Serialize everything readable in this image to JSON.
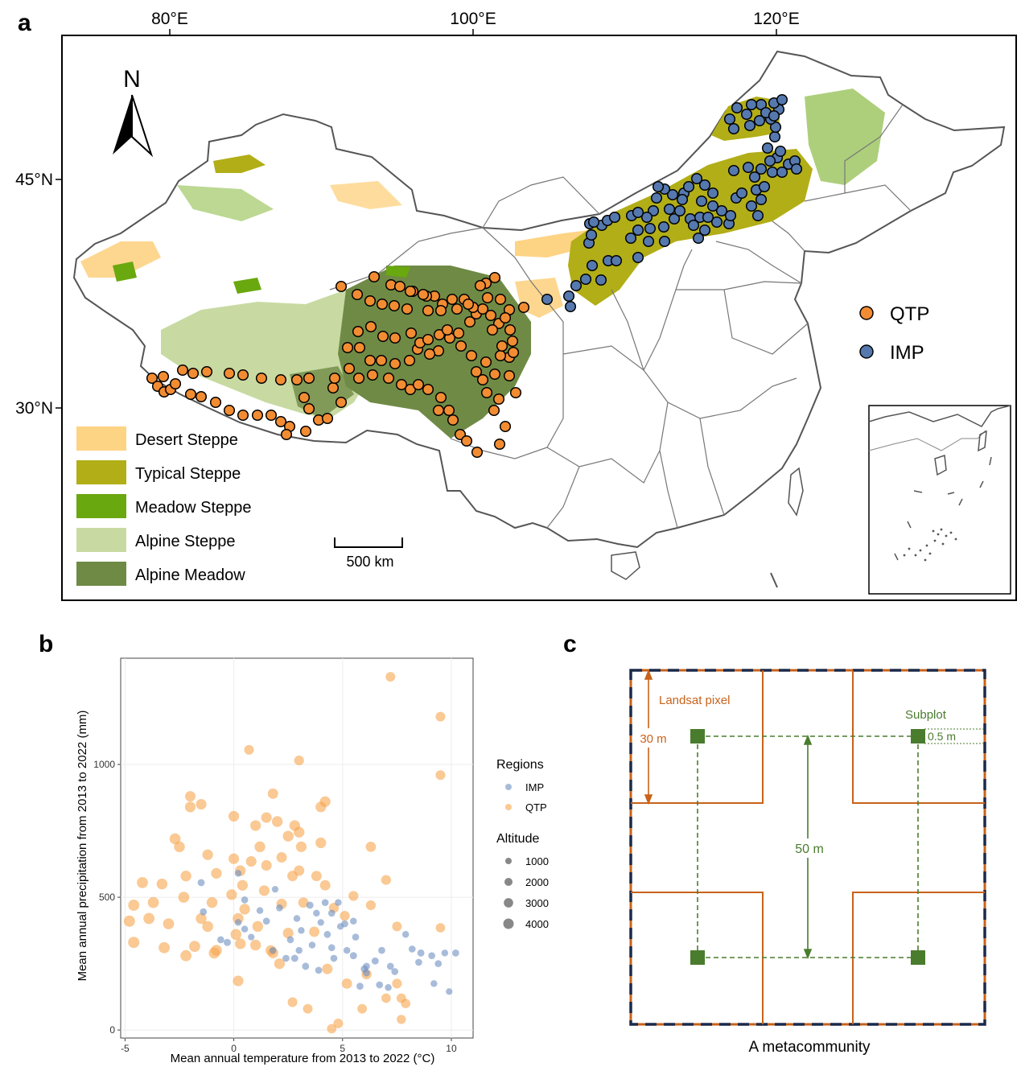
{
  "panel_labels": {
    "a": "a",
    "b": "b",
    "c": "c"
  },
  "map": {
    "lon_ticks": [
      "80°E",
      "100°E",
      "120°E"
    ],
    "lat_ticks": [
      "45°N",
      "30°N"
    ],
    "north_label": "N",
    "scale_label": "500 km",
    "legend_vegetation": [
      {
        "label": "Desert Steppe",
        "color": "#FDD384"
      },
      {
        "label": "Typical Steppe",
        "color": "#B1AE17"
      },
      {
        "label": "Meadow Steppe",
        "color": "#6AA80F"
      },
      {
        "label": "Alpine Steppe",
        "color": "#C8DAA2"
      },
      {
        "label": "Alpine Meadow",
        "color": "#6F8A45"
      }
    ],
    "legend_sites": [
      {
        "label": "QTP",
        "color": "#F28C32"
      },
      {
        "label": "IMP",
        "color": "#5579AE"
      }
    ]
  },
  "chart_data": {
    "type": "scatter",
    "title": "",
    "xlabel": "Mean annual temperature from 2013 to 2022 (°C)",
    "ylabel": "Mean annual precipitation from 2013 to 2022 (mm)",
    "xlim": [
      -5.2,
      11
    ],
    "ylim": [
      -30,
      1400
    ],
    "xticks": [
      -5,
      0,
      5,
      10
    ],
    "yticks": [
      0,
      500,
      1000
    ],
    "legend": {
      "regions_title": "Regions",
      "regions": [
        {
          "name": "IMP",
          "color": "#6E8FC2"
        },
        {
          "name": "QTP",
          "color": "#F7A54C"
        }
      ],
      "altitude_title": "Altitude",
      "altitude_values": [
        1000,
        2000,
        3000,
        4000
      ]
    },
    "series": [
      {
        "name": "QTP",
        "color": "#F7A54C",
        "points": [
          [
            7.2,
            1330,
            3200
          ],
          [
            9.5,
            1180,
            3300
          ],
          [
            9.5,
            960,
            3300
          ],
          [
            0.7,
            1055,
            3300
          ],
          [
            3,
            1015,
            3400
          ],
          [
            -2,
            840,
            4200
          ],
          [
            -1.5,
            850,
            4100
          ],
          [
            -2,
            880,
            4000
          ],
          [
            0,
            805,
            4200
          ],
          [
            1.5,
            800,
            4100
          ],
          [
            2.8,
            770,
            4200
          ],
          [
            3,
            745,
            4300
          ],
          [
            4,
            840,
            4100
          ],
          [
            4.2,
            860,
            4200
          ],
          [
            1.8,
            890,
            3900
          ],
          [
            -2.7,
            720,
            4500
          ],
          [
            -2.5,
            690,
            4400
          ],
          [
            -1.2,
            660,
            4200
          ],
          [
            0,
            645,
            4100
          ],
          [
            1.2,
            690,
            4300
          ],
          [
            1,
            770,
            4200
          ],
          [
            2,
            785,
            4300
          ],
          [
            2.5,
            730,
            4300
          ],
          [
            3.1,
            690,
            4100
          ],
          [
            4,
            705,
            4200
          ],
          [
            6.3,
            690,
            3800
          ],
          [
            -4.2,
            555,
            4600
          ],
          [
            -3.3,
            550,
            4400
          ],
          [
            -2.2,
            580,
            4300
          ],
          [
            -0.8,
            590,
            4200
          ],
          [
            0.3,
            600,
            4200
          ],
          [
            0.8,
            635,
            4100
          ],
          [
            1.5,
            620,
            4100
          ],
          [
            2.2,
            650,
            4000
          ],
          [
            3,
            600,
            4000
          ],
          [
            3.8,
            580,
            3900
          ],
          [
            4.2,
            545,
            3900
          ],
          [
            -4.6,
            470,
            4700
          ],
          [
            -3.7,
            480,
            4600
          ],
          [
            -2.3,
            500,
            4500
          ],
          [
            -1,
            480,
            4400
          ],
          [
            -0.1,
            510,
            4200
          ],
          [
            0.4,
            545,
            4200
          ],
          [
            1.4,
            525,
            4100
          ],
          [
            2.2,
            475,
            4000
          ],
          [
            3.2,
            480,
            3900
          ],
          [
            -4.8,
            410,
            4800
          ],
          [
            -3.9,
            420,
            4700
          ],
          [
            -3,
            400,
            4600
          ],
          [
            -1.2,
            390,
            4500
          ],
          [
            0.2,
            420,
            4400
          ],
          [
            1.1,
            390,
            4300
          ],
          [
            2.5,
            365,
            4100
          ],
          [
            3.7,
            370,
            3900
          ],
          [
            5.1,
            430,
            3500
          ],
          [
            4.6,
            460,
            3600
          ],
          [
            -4.6,
            330,
            4800
          ],
          [
            -3.2,
            310,
            4700
          ],
          [
            -1.8,
            315,
            4600
          ],
          [
            -0.8,
            300,
            4500
          ],
          [
            0.3,
            325,
            4300
          ],
          [
            1,
            320,
            4300
          ],
          [
            1.8,
            290,
            4100
          ],
          [
            -2.2,
            280,
            4700
          ],
          [
            -0.9,
            290,
            4600
          ],
          [
            0.1,
            360,
            4400
          ],
          [
            0.2,
            185,
            4100
          ],
          [
            2.1,
            250,
            4200
          ],
          [
            4.3,
            230,
            4000
          ],
          [
            5.2,
            175,
            3800
          ],
          [
            6.1,
            210,
            3600
          ],
          [
            7.5,
            175,
            3300
          ],
          [
            7.7,
            120,
            3100
          ],
          [
            7.9,
            100,
            3000
          ],
          [
            7,
            120,
            3000
          ],
          [
            2.7,
            105,
            3300
          ],
          [
            3.4,
            80,
            3200
          ],
          [
            4.8,
            25,
            3200
          ],
          [
            4.5,
            5,
            3000
          ],
          [
            5.9,
            80,
            3100
          ],
          [
            7.7,
            40,
            2800
          ],
          [
            6.3,
            470,
            3400
          ],
          [
            7.5,
            390,
            3200
          ],
          [
            7,
            565,
            3400
          ],
          [
            9.5,
            385,
            3000
          ],
          [
            5.5,
            505,
            3500
          ],
          [
            1.7,
            300,
            4000
          ],
          [
            -1.5,
            420,
            4300
          ],
          [
            0.5,
            455,
            4200
          ],
          [
            2.7,
            580,
            4000
          ]
        ]
      },
      {
        "name": "IMP",
        "color": "#6E8FC2",
        "points": [
          [
            -1.5,
            555,
            1400
          ],
          [
            -1.4,
            445,
            1300
          ],
          [
            0.2,
            590,
            1200
          ],
          [
            0.5,
            490,
            1300
          ],
          [
            1.2,
            450,
            1200
          ],
          [
            1.9,
            530,
            1100
          ],
          [
            2.1,
            460,
            1300
          ],
          [
            2.9,
            420,
            1200
          ],
          [
            3.5,
            470,
            1400
          ],
          [
            4.2,
            480,
            1300
          ],
          [
            3.8,
            440,
            1200
          ],
          [
            4.5,
            440,
            1300
          ],
          [
            4.8,
            480,
            1200
          ],
          [
            5.1,
            400,
            1300
          ],
          [
            4.3,
            360,
            1300
          ],
          [
            3.1,
            375,
            1200
          ],
          [
            2.6,
            340,
            1300
          ],
          [
            1.8,
            300,
            1200
          ],
          [
            1.5,
            410,
            1300
          ],
          [
            0.8,
            350,
            1100
          ],
          [
            0.5,
            380,
            1200
          ],
          [
            -0.3,
            330,
            1400
          ],
          [
            -0.6,
            340,
            1300
          ],
          [
            0.2,
            405,
            1200
          ],
          [
            2.8,
            270,
            1400
          ],
          [
            3.3,
            240,
            1400
          ],
          [
            4.6,
            270,
            1300
          ],
          [
            5.5,
            280,
            1400
          ],
          [
            6.1,
            240,
            1300
          ],
          [
            6.5,
            260,
            1400
          ],
          [
            7.2,
            240,
            1300
          ],
          [
            7.4,
            220,
            1300
          ],
          [
            7.9,
            360,
            1200
          ],
          [
            8.2,
            305,
            1300
          ],
          [
            8.6,
            290,
            1400
          ],
          [
            9.1,
            280,
            1300
          ],
          [
            9.4,
            250,
            1300
          ],
          [
            9.7,
            290,
            1200
          ],
          [
            9.9,
            145,
            1100
          ],
          [
            10.2,
            290,
            1300
          ],
          [
            8.5,
            255,
            1300
          ],
          [
            9.2,
            175,
            1200
          ],
          [
            6,
            230,
            1400
          ],
          [
            6.1,
            215,
            1300
          ],
          [
            5.8,
            165,
            1300
          ],
          [
            6.7,
            170,
            1300
          ],
          [
            7.1,
            160,
            1200
          ],
          [
            3.9,
            225,
            1300
          ],
          [
            4.5,
            310,
            1300
          ],
          [
            3.6,
            320,
            1200
          ],
          [
            5.2,
            300,
            1200
          ],
          [
            5.6,
            350,
            1300
          ],
          [
            6.8,
            300,
            1300
          ],
          [
            3,
            300,
            1200
          ],
          [
            2.4,
            270,
            1300
          ],
          [
            4,
            405,
            1100
          ],
          [
            4.9,
            390,
            1100
          ],
          [
            5.5,
            410,
            1200
          ]
        ]
      }
    ]
  },
  "diagram": {
    "pixel_label": "Landsat pixel",
    "subplot_label": "Subplot",
    "dim_30": "30 m",
    "dim_50": "50 m",
    "dim_05": "0.5 m",
    "caption": "A metacommunity",
    "orange": "#C8621A",
    "green": "#4A7C2E",
    "navy": "#1B2A4A"
  }
}
